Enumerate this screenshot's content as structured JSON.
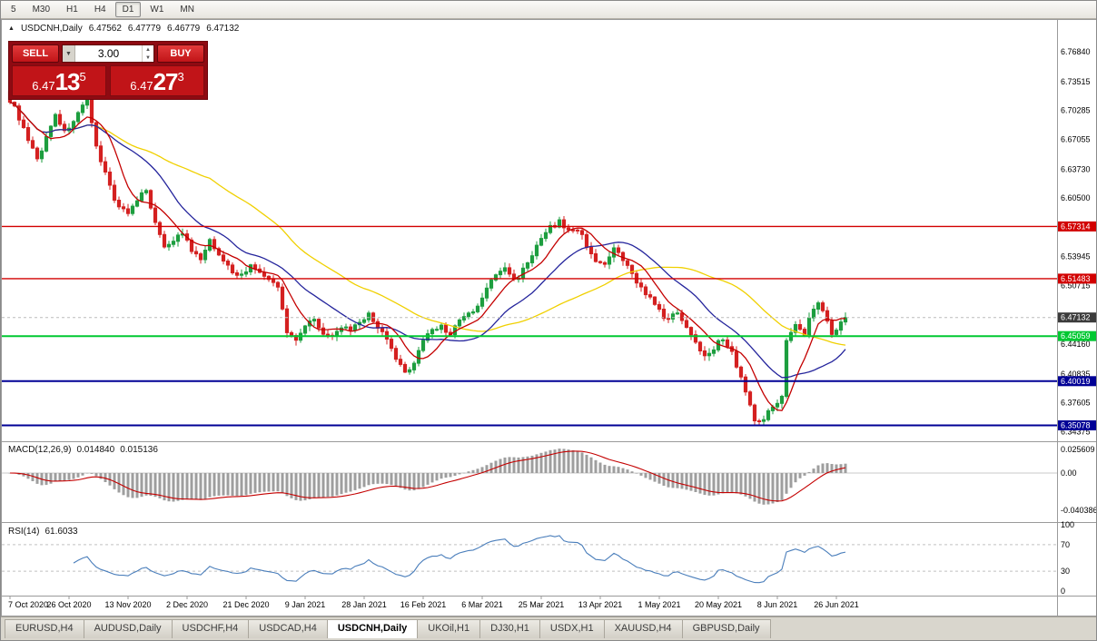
{
  "toolbar": {
    "periods": [
      "5",
      "M30",
      "H1",
      "H4",
      "D1",
      "W1",
      "MN"
    ],
    "active": "D1"
  },
  "header": {
    "collapse_icon": "▲",
    "symbol": "USDCNH,Daily",
    "open": "6.47562",
    "high": "6.47779",
    "low": "6.46779",
    "close": "6.47132"
  },
  "trade_panel": {
    "sell_label": "SELL",
    "buy_label": "BUY",
    "volume": "3.00",
    "sell_price_base": "6.47",
    "sell_price_pips": "13",
    "sell_price_point": "5",
    "buy_price_base": "6.47",
    "buy_price_pips": "27",
    "buy_price_point": "3"
  },
  "colors": {
    "candle_up": "#1d9e3f",
    "candle_down": "#d42020",
    "ma_fast": "#c40000",
    "ma_mid": "#24249c",
    "ma_slow": "#f0d000",
    "macd_hist": "#9e9e9e",
    "macd_signal": "#c40000",
    "rsi_line": "#4a7ebb",
    "badge_current": "#3c3c3c"
  },
  "chart_data": {
    "type": "candlestick",
    "symbol": "USDCNH",
    "timeframe": "Daily",
    "days": 185,
    "current_price": 6.47132,
    "current_price_label": "6.47132",
    "price_axis": {
      "top": 6.8,
      "bottom": 6.335
    },
    "axis_ticks": [
      "6.76840",
      "6.73515",
      "6.70285",
      "6.67055",
      "6.63730",
      "6.60500",
      "6.53945",
      "6.50715",
      "6.44160",
      "6.40835",
      "6.37605",
      "6.34375"
    ],
    "levels": [
      {
        "price": 6.57314,
        "label": "6.57314",
        "color": "#d20000",
        "width": 1.4
      },
      {
        "price": 6.51483,
        "label": "6.51483",
        "color": "#d20000",
        "width": 1.4
      },
      {
        "price": 6.45059,
        "label": "6.45059",
        "color": "#00c832",
        "width": 2
      },
      {
        "price": 6.40019,
        "label": "6.40019",
        "color": "#000096",
        "width": 2
      },
      {
        "price": 6.35078,
        "label": "6.35078",
        "color": "#000096",
        "width": 2
      }
    ],
    "close_anchors": [
      [
        0,
        6.715
      ],
      [
        2,
        6.695
      ],
      [
        4,
        6.668
      ],
      [
        6,
        6.648
      ],
      [
        8,
        6.672
      ],
      [
        10,
        6.7
      ],
      [
        12,
        6.678
      ],
      [
        14,
        6.692
      ],
      [
        16,
        6.706
      ],
      [
        17,
        6.712
      ],
      [
        19,
        6.662
      ],
      [
        21,
        6.635
      ],
      [
        23,
        6.602
      ],
      [
        26,
        6.588
      ],
      [
        28,
        6.6
      ],
      [
        30,
        6.616
      ],
      [
        32,
        6.576
      ],
      [
        34,
        6.552
      ],
      [
        36,
        6.558
      ],
      [
        38,
        6.566
      ],
      [
        40,
        6.545
      ],
      [
        42,
        6.536
      ],
      [
        44,
        6.556
      ],
      [
        46,
        6.544
      ],
      [
        48,
        6.528
      ],
      [
        50,
        6.518
      ],
      [
        53,
        6.528
      ],
      [
        55,
        6.523
      ],
      [
        57,
        6.512
      ],
      [
        59,
        6.506
      ],
      [
        60,
        6.48
      ],
      [
        61,
        6.455
      ],
      [
        63,
        6.448
      ],
      [
        65,
        6.462
      ],
      [
        67,
        6.472
      ],
      [
        69,
        6.452
      ],
      [
        71,
        6.448
      ],
      [
        73,
        6.462
      ],
      [
        75,
        6.455
      ],
      [
        77,
        6.466
      ],
      [
        79,
        6.474
      ],
      [
        81,
        6.462
      ],
      [
        83,
        6.445
      ],
      [
        85,
        6.425
      ],
      [
        87,
        6.408
      ],
      [
        89,
        6.422
      ],
      [
        91,
        6.446
      ],
      [
        93,
        6.458
      ],
      [
        95,
        6.462
      ],
      [
        97,
        6.452
      ],
      [
        99,
        6.468
      ],
      [
        101,
        6.475
      ],
      [
        103,
        6.482
      ],
      [
        105,
        6.505
      ],
      [
        107,
        6.518
      ],
      [
        109,
        6.528
      ],
      [
        111,
        6.512
      ],
      [
        113,
        6.525
      ],
      [
        115,
        6.542
      ],
      [
        117,
        6.558
      ],
      [
        119,
        6.572
      ],
      [
        121,
        6.578
      ],
      [
        123,
        6.568
      ],
      [
        125,
        6.571
      ],
      [
        127,
        6.552
      ],
      [
        129,
        6.536
      ],
      [
        131,
        6.528
      ],
      [
        133,
        6.548
      ],
      [
        135,
        6.535
      ],
      [
        137,
        6.52
      ],
      [
        139,
        6.505
      ],
      [
        141,
        6.492
      ],
      [
        143,
        6.478
      ],
      [
        145,
        6.468
      ],
      [
        147,
        6.478
      ],
      [
        149,
        6.462
      ],
      [
        151,
        6.442
      ],
      [
        153,
        6.43
      ],
      [
        155,
        6.438
      ],
      [
        157,
        6.448
      ],
      [
        159,
        6.432
      ],
      [
        161,
        6.405
      ],
      [
        163,
        6.372
      ],
      [
        164,
        6.356
      ],
      [
        166,
        6.36
      ],
      [
        168,
        6.37
      ],
      [
        170,
        6.385
      ],
      [
        171,
        6.448
      ],
      [
        173,
        6.462
      ],
      [
        175,
        6.452
      ],
      [
        176,
        6.47
      ],
      [
        178,
        6.488
      ],
      [
        180,
        6.47
      ],
      [
        181,
        6.455
      ],
      [
        183,
        6.465
      ],
      [
        184,
        6.47132
      ]
    ],
    "moving_averages": [
      {
        "period": 8,
        "color_key": "ma_fast"
      },
      {
        "period": 20,
        "color_key": "ma_mid"
      },
      {
        "period": 45,
        "color_key": "ma_slow"
      }
    ],
    "macd": {
      "name": "MACD(12,26,9)",
      "value_main": "0.014840",
      "value_signal": "0.015136",
      "fast": 12,
      "slow": 26,
      "signal": 9,
      "axis": [
        "0.025609",
        "0.00",
        "-0.040386"
      ]
    },
    "rsi": {
      "name": "RSI(14)",
      "value": "61.6033",
      "period": 14,
      "levels": [
        70,
        30
      ],
      "axis": [
        "100",
        "70",
        "30",
        "0"
      ]
    },
    "date_labels": [
      {
        "day": 0,
        "text": "7 Oct 2020"
      },
      {
        "day": 13,
        "text": "26 Oct 2020"
      },
      {
        "day": 26,
        "text": "13 Nov 2020"
      },
      {
        "day": 39,
        "text": "2 Dec 2020"
      },
      {
        "day": 52,
        "text": "21 Dec 2020"
      },
      {
        "day": 65,
        "text": "9 Jan 2021"
      },
      {
        "day": 78,
        "text": "28 Jan 2021"
      },
      {
        "day": 91,
        "text": "16 Feb 2021"
      },
      {
        "day": 104,
        "text": "6 Mar 2021"
      },
      {
        "day": 117,
        "text": "25 Mar 2021"
      },
      {
        "day": 130,
        "text": "13 Apr 2021"
      },
      {
        "day": 143,
        "text": "1 May 2021"
      },
      {
        "day": 156,
        "text": "20 May 2021"
      },
      {
        "day": 169,
        "text": "8 Jun 2021"
      },
      {
        "day": 182,
        "text": "26 Jun 2021"
      }
    ]
  },
  "tabs": {
    "items": [
      "EURUSD,H4",
      "AUDUSD,Daily",
      "USDCHF,H4",
      "USDCAD,H4",
      "USDCNH,Daily",
      "UKOil,H1",
      "DJ30,H1",
      "USDX,H1",
      "XAUUSD,H4",
      "GBPUSD,Daily"
    ],
    "active": "USDCNH,Daily"
  }
}
